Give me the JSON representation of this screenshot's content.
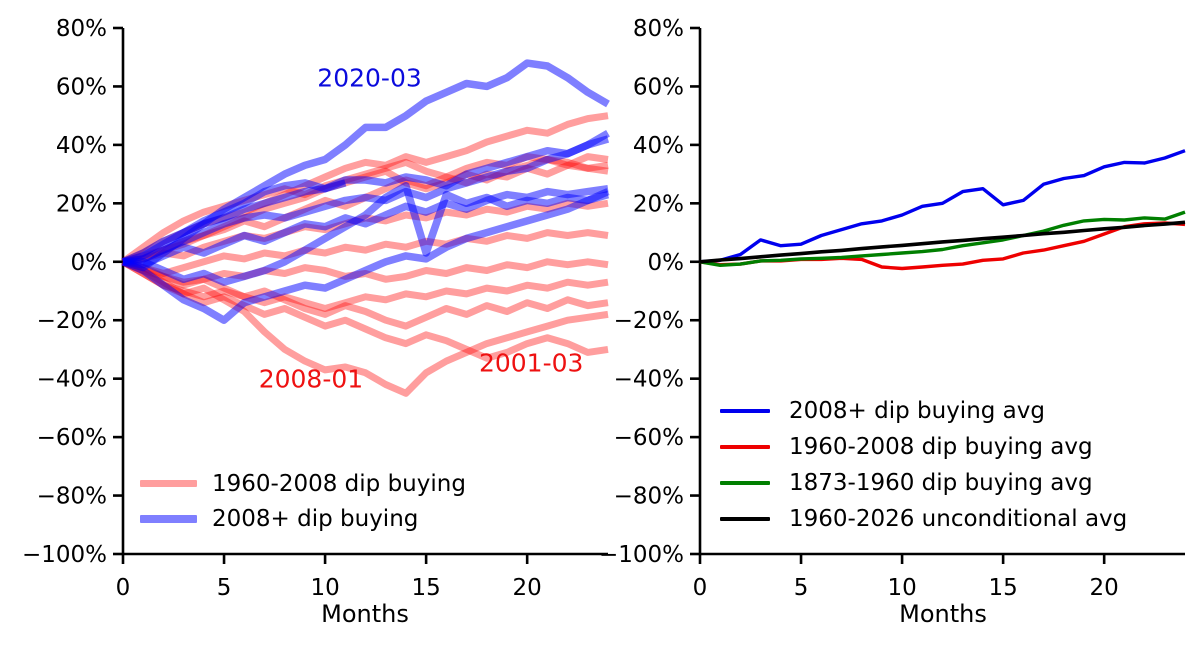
{
  "figure": {
    "background": "#ffffff"
  },
  "chart_data": [
    {
      "id": "left-panel",
      "type": "line",
      "title": "",
      "xlabel": "Months",
      "ylabel": "",
      "xlim": [
        0,
        24
      ],
      "ylim": [
        -100,
        80
      ],
      "x_start": 0,
      "x_step": 1,
      "grid": false,
      "xticks": {
        "values": [
          0,
          5,
          10,
          15,
          20
        ],
        "labels": [
          "0",
          "5",
          "10",
          "15",
          "20"
        ]
      },
      "yticks": {
        "values": [
          80,
          60,
          40,
          20,
          0,
          -20,
          -40,
          -60,
          -80,
          -100
        ],
        "labels": [
          "80%",
          "60%",
          "40%",
          "20%",
          "0%",
          "−20%",
          "−40%",
          "−60%",
          "−80%",
          "−100%"
        ]
      },
      "legend": {
        "position": "lower left",
        "entries": [
          {
            "label": "1960-2008 dip buying",
            "color": "#ff0000",
            "opacity": 0.38,
            "linewidth": 7
          },
          {
            "label": "2008+ dip buying",
            "color": "#0000ff",
            "opacity": 0.5,
            "linewidth": 8
          }
        ]
      },
      "annotations": [
        {
          "text": "2020-03",
          "color": "#0b0bdd",
          "x": 12.2,
          "y": 63
        },
        {
          "text": "2008-01",
          "color": "#ee1111",
          "x": 9.3,
          "y": -40
        },
        {
          "text": "2001-03",
          "color": "#ee1111",
          "x": 20.2,
          "y": -34.5
        }
      ],
      "series": [
        {
          "name": "1960-2008 dip path 1",
          "group": "1960-2008 dip buying",
          "color": "#ff0000",
          "opacity": 0.38,
          "linewidth": 7,
          "values": [
            0,
            3,
            7,
            10,
            13,
            15,
            17,
            20,
            23,
            26,
            29,
            32,
            34,
            33,
            36,
            34,
            36,
            38,
            41,
            43,
            45,
            44,
            47,
            49,
            50
          ]
        },
        {
          "name": "1960-2008 dip path 2",
          "group": "1960-2008 dip buying",
          "color": "#ff0000",
          "opacity": 0.38,
          "linewidth": 7,
          "values": [
            0,
            5,
            10,
            14,
            17,
            19,
            21,
            23,
            25,
            23,
            26,
            28,
            30,
            32,
            34,
            31,
            29,
            32,
            34,
            33,
            36,
            35,
            33,
            36,
            35
          ]
        },
        {
          "name": "1960-2008 dip path 3",
          "group": "1960-2008 dip buying",
          "color": "#ff0000",
          "opacity": 0.38,
          "linewidth": 7,
          "values": [
            0,
            2,
            4,
            7,
            9,
            12,
            15,
            18,
            20,
            22,
            25,
            27,
            29,
            31,
            27,
            25,
            27,
            30,
            28,
            31,
            33,
            35,
            34,
            32,
            33
          ]
        },
        {
          "name": "1960-2008 dip path 4",
          "group": "1960-2008 dip buying",
          "color": "#ff0000",
          "opacity": 0.38,
          "linewidth": 7,
          "values": [
            0,
            1,
            4,
            6,
            9,
            11,
            14,
            12,
            15,
            18,
            21,
            19,
            22,
            25,
            28,
            26,
            29,
            27,
            30,
            29,
            32,
            30,
            33,
            32,
            31
          ]
        },
        {
          "name": "1960-2008 dip path 5",
          "group": "1960-2008 dip buying",
          "color": "#ff0000",
          "opacity": 0.38,
          "linewidth": 7,
          "values": [
            0,
            1,
            3,
            2,
            5,
            7,
            9,
            8,
            10,
            12,
            11,
            13,
            15,
            14,
            16,
            15,
            17,
            16,
            18,
            17,
            19,
            18,
            20,
            19,
            20
          ]
        },
        {
          "name": "1960-2008 dip path 6",
          "group": "1960-2008 dip buying",
          "color": "#ff0000",
          "opacity": 0.38,
          "linewidth": 7,
          "values": [
            0,
            -2,
            -4,
            -2,
            0,
            2,
            1,
            3,
            2,
            4,
            3,
            5,
            4,
            6,
            5,
            7,
            6,
            8,
            7,
            9,
            8,
            10,
            9,
            10,
            9
          ]
        },
        {
          "name": "1960-2008 dip path 7",
          "group": "1960-2008 dip buying",
          "color": "#ff0000",
          "opacity": 0.38,
          "linewidth": 7,
          "values": [
            0,
            -3,
            -5,
            -7,
            -6,
            -4,
            -5,
            -3,
            -4,
            -2,
            -3,
            -5,
            -4,
            -6,
            -5,
            -3,
            -4,
            -2,
            -3,
            -1,
            -2,
            0,
            -1,
            0,
            -1
          ]
        },
        {
          "name": "1960-2008 dip path 8",
          "group": "1960-2008 dip buying",
          "color": "#ff0000",
          "opacity": 0.38,
          "linewidth": 7,
          "values": [
            0,
            -4,
            -8,
            -10,
            -12,
            -10,
            -12,
            -14,
            -12,
            -14,
            -16,
            -14,
            -12,
            -13,
            -11,
            -12,
            -10,
            -11,
            -9,
            -10,
            -8,
            -9,
            -7,
            -8,
            -7
          ]
        },
        {
          "name": "1960-2008 dip path 9",
          "group": "1960-2008 dip buying",
          "color": "#ff0000",
          "opacity": 0.38,
          "linewidth": 7,
          "values": [
            0,
            -2,
            -5,
            -8,
            -6,
            -9,
            -12,
            -10,
            -13,
            -16,
            -18,
            -15,
            -17,
            -20,
            -22,
            -19,
            -16,
            -18,
            -15,
            -17,
            -14,
            -16,
            -13,
            -15,
            -14
          ]
        },
        {
          "name": "2001-03 dip",
          "group": "1960-2008 dip buying",
          "color": "#ff0000",
          "opacity": 0.38,
          "linewidth": 7,
          "values": [
            0,
            -3,
            -7,
            -11,
            -14,
            -12,
            -15,
            -18,
            -16,
            -19,
            -22,
            -20,
            -23,
            -26,
            -28,
            -25,
            -27,
            -30,
            -33,
            -31,
            -28,
            -26,
            -28,
            -31,
            -30
          ]
        },
        {
          "name": "2008-01 dip",
          "group": "1960-2008 dip buying",
          "color": "#ff0000",
          "opacity": 0.38,
          "linewidth": 7,
          "values": [
            0,
            -4,
            -8,
            -11,
            -9,
            -13,
            -17,
            -24,
            -30,
            -34,
            -37,
            -36,
            -38,
            -42,
            -45,
            -38,
            -34,
            -31,
            -28,
            -26,
            -24,
            -22,
            -20,
            -19,
            -18
          ]
        },
        {
          "name": "2020-03 dip",
          "group": "2008+ dip buying",
          "color": "#0000ff",
          "opacity": 0.5,
          "linewidth": 7.5,
          "values": [
            0,
            -2,
            3,
            8,
            13,
            18,
            22,
            26,
            30,
            33,
            35,
            40,
            46,
            46,
            50,
            55,
            58,
            61,
            60,
            63,
            68,
            67,
            63,
            58,
            54
          ]
        },
        {
          "name": "2008+ dip path 2",
          "group": "2008+ dip buying",
          "color": "#0000ff",
          "opacity": 0.5,
          "linewidth": 7.5,
          "values": [
            0,
            2,
            6,
            10,
            14,
            17,
            20,
            24,
            26,
            27,
            25,
            28,
            28,
            27,
            29,
            28,
            26,
            30,
            32,
            34,
            36,
            38,
            37,
            40,
            44
          ]
        },
        {
          "name": "2008+ dip path 3",
          "group": "2008+ dip buying",
          "color": "#0000ff",
          "opacity": 0.5,
          "linewidth": 7.5,
          "values": [
            0,
            1,
            4,
            7,
            10,
            13,
            15,
            16,
            15,
            17,
            19,
            21,
            22,
            21,
            24,
            22,
            25,
            27,
            29,
            31,
            32,
            35,
            37,
            40,
            42
          ]
        },
        {
          "name": "2008+ dip path 4",
          "group": "2008+ dip buying",
          "color": "#0000ff",
          "opacity": 0.5,
          "linewidth": 7.5,
          "values": [
            0,
            -3,
            -8,
            -13,
            -16,
            -20,
            -14,
            -12,
            -10,
            -8,
            -9,
            -6,
            -3,
            0,
            2,
            1,
            5,
            8,
            10,
            12,
            14,
            16,
            18,
            21,
            24
          ]
        },
        {
          "name": "2008+ dip path 5",
          "group": "2008+ dip buying",
          "color": "#0000ff",
          "opacity": 0.5,
          "linewidth": 7.5,
          "values": [
            0,
            0,
            -3,
            -6,
            -4,
            -7,
            -5,
            -3,
            0,
            4,
            8,
            12,
            16,
            22,
            26,
            3,
            23,
            20,
            22,
            19,
            21,
            20,
            22,
            21,
            23
          ]
        },
        {
          "name": "2008+ dip path 6",
          "group": "2008+ dip buying",
          "color": "#0000ff",
          "opacity": 0.5,
          "linewidth": 7.5,
          "values": [
            0,
            3,
            7,
            10,
            13,
            15,
            18,
            20,
            22,
            24,
            25,
            27
          ]
        },
        {
          "name": "2008+ dip path 7",
          "group": "2008+ dip buying",
          "color": "#0000ff",
          "opacity": 0.5,
          "linewidth": 7.5,
          "values": [
            0,
            -1,
            2,
            5,
            3,
            6,
            9,
            7,
            10,
            13,
            12,
            15,
            13,
            16,
            19,
            17,
            20,
            18,
            21,
            23,
            22,
            24,
            23,
            24,
            25
          ]
        }
      ]
    },
    {
      "id": "right-panel",
      "type": "line",
      "title": "",
      "xlabel": "Months",
      "ylabel": "",
      "xlim": [
        0,
        24
      ],
      "ylim": [
        -100,
        80
      ],
      "x_start": 0,
      "x_step": 1,
      "grid": false,
      "xticks": {
        "values": [
          0,
          5,
          10,
          15,
          20
        ],
        "labels": [
          "0",
          "5",
          "10",
          "15",
          "20"
        ]
      },
      "yticks": {
        "values": [
          80,
          60,
          40,
          20,
          0,
          -20,
          -40,
          -60,
          -80,
          -100
        ],
        "labels": [
          "80%",
          "60%",
          "40%",
          "20%",
          "0%",
          "−20%",
          "−40%",
          "−60%",
          "−80%",
          "−100%"
        ]
      },
      "legend": {
        "position": "lower left",
        "entries": [
          {
            "label": "2008+ dip buying avg",
            "color": "#0000ee",
            "opacity": 1,
            "linewidth": 4
          },
          {
            "label": "1960-2008 dip buying avg",
            "color": "#ee0000",
            "opacity": 1,
            "linewidth": 4
          },
          {
            "label": "1873-1960 dip buying avg",
            "color": "#007f00",
            "opacity": 1,
            "linewidth": 4
          },
          {
            "label": "1960-2026 unconditional avg",
            "color": "#000000",
            "opacity": 1,
            "linewidth": 4
          }
        ]
      },
      "annotations": [],
      "series": [
        {
          "name": "2008+ dip buying avg",
          "group": "average",
          "color": "#0000ee",
          "opacity": 1,
          "linewidth": 3.4,
          "values": [
            0,
            0.5,
            2.5,
            7.5,
            5.5,
            6,
            9,
            11,
            13,
            14,
            16,
            19,
            20,
            24,
            25,
            19.5,
            21,
            26.5,
            28.5,
            29.5,
            32.5,
            34,
            33.8,
            35.5,
            38
          ]
        },
        {
          "name": "1960-2008 dip buying avg",
          "group": "average",
          "color": "#ee0000",
          "opacity": 1,
          "linewidth": 3.4,
          "values": [
            0,
            -1,
            -0.8,
            0.3,
            0.3,
            0.8,
            0.8,
            1.2,
            0.8,
            -1.8,
            -2.3,
            -1.8,
            -1.2,
            -0.8,
            0.5,
            1,
            3,
            4,
            5.5,
            7,
            9.5,
            12,
            13,
            13.3,
            12.8
          ]
        },
        {
          "name": "1873-1960 dip buying avg",
          "group": "average",
          "color": "#007f00",
          "opacity": 1,
          "linewidth": 3.4,
          "values": [
            0,
            -1.2,
            -0.8,
            0.3,
            0.5,
            1,
            1.2,
            1.5,
            2,
            2.5,
            3,
            3.5,
            4.2,
            5.5,
            6.5,
            7.5,
            9,
            10.5,
            12.5,
            14,
            14.5,
            14.3,
            15,
            14.6,
            17
          ]
        },
        {
          "name": "1960-2026 unconditional avg",
          "group": "average",
          "color": "#000000",
          "opacity": 1,
          "linewidth": 3.6,
          "values": [
            0,
            0.6,
            1.1,
            1.7,
            2.3,
            2.8,
            3.4,
            3.9,
            4.5,
            5.1,
            5.6,
            6.2,
            6.8,
            7.3,
            7.9,
            8.4,
            9,
            9.6,
            10.1,
            10.7,
            11.3,
            11.8,
            12.4,
            12.9,
            13.5
          ]
        }
      ]
    }
  ]
}
